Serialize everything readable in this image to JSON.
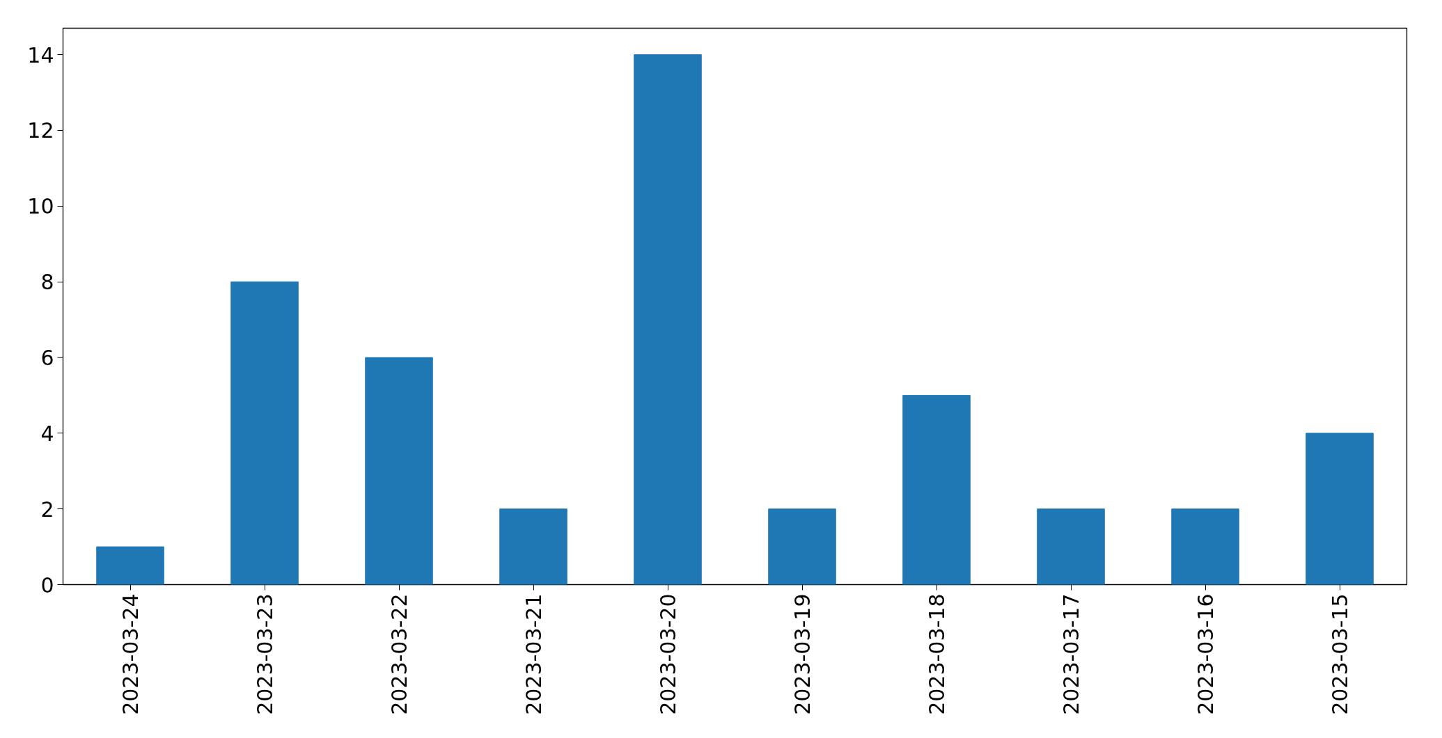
{
  "chart_data": {
    "type": "bar",
    "categories": [
      "2023-03-24",
      "2023-03-23",
      "2023-03-22",
      "2023-03-21",
      "2023-03-20",
      "2023-03-19",
      "2023-03-18",
      "2023-03-17",
      "2023-03-16",
      "2023-03-15"
    ],
    "values": [
      1,
      8,
      6,
      2,
      14,
      2,
      5,
      2,
      2,
      4
    ],
    "color": "#1f77b4",
    "ylim": [
      0,
      14.7
    ],
    "yticks": [
      0,
      2,
      4,
      6,
      8,
      10,
      12,
      14
    ],
    "grid": false
  }
}
